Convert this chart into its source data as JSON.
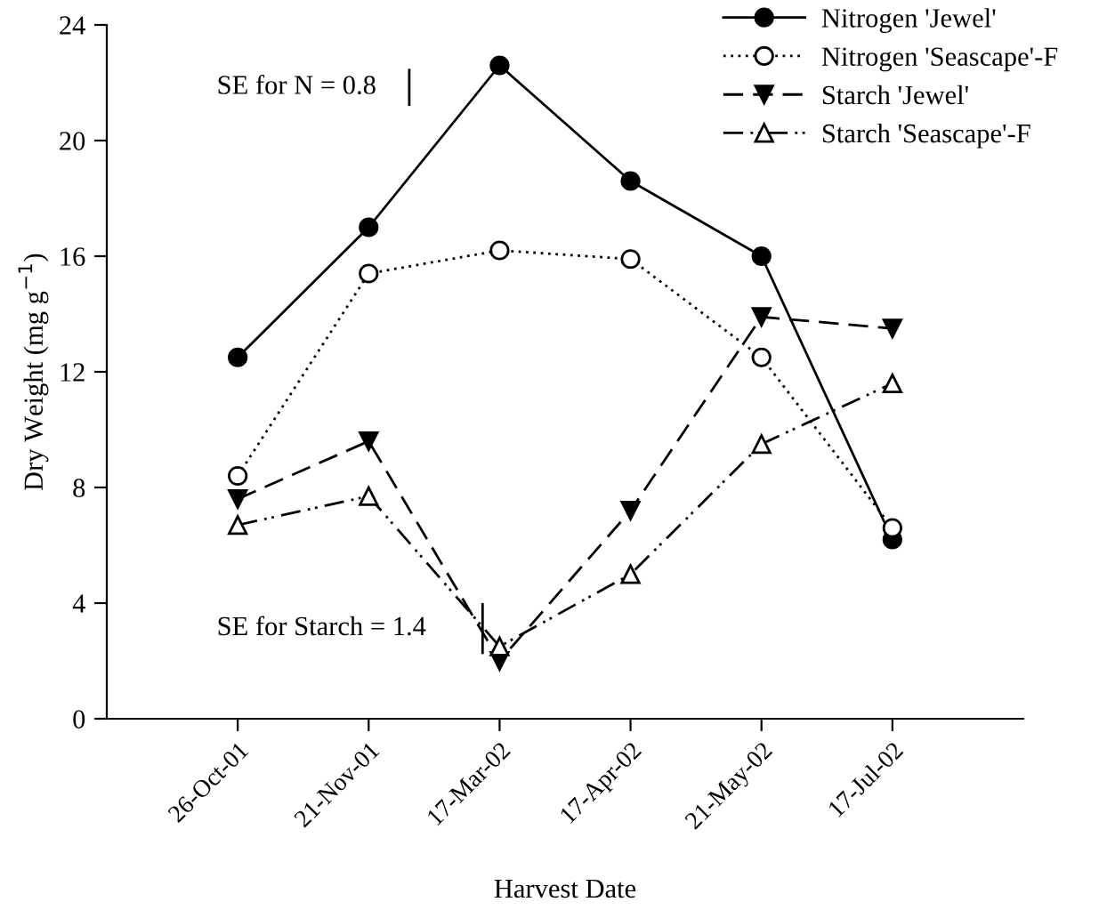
{
  "chart_data": {
    "type": "line",
    "xlabel": "Harvest Date",
    "ylabel": "Dry Weight (mg g$^{−1}$)",
    "categories": [
      "26-Oct-01",
      "21-Nov-01",
      "17-Mar-02",
      "17-Apr-02",
      "21-May-02",
      "17-Jul-02"
    ],
    "ylim": [
      0,
      24
    ],
    "yticks": [
      0,
      4,
      8,
      12,
      16,
      20,
      24
    ],
    "grid": false,
    "legend": "top right",
    "series": [
      {
        "name": "Nitrogen 'Jewel'",
        "color": "#000000",
        "marker": "circle",
        "line_style": "solid",
        "values": [
          12.5,
          17.0,
          22.6,
          18.6,
          16.0,
          6.2
        ]
      },
      {
        "name": "Nitrogen 'Seascape'-F",
        "color": "#000000",
        "marker": "circle",
        "line_style": "dotted",
        "values": [
          8.4,
          15.4,
          16.2,
          15.9,
          12.5,
          6.6
        ]
      },
      {
        "name": "Starch 'Jewel'",
        "color": "#000000",
        "marker": "triangle_down",
        "line_style": "dashed",
        "values": [
          7.6,
          9.6,
          2.0,
          7.2,
          13.9,
          13.5
        ]
      },
      {
        "name": "Starch 'Seascape'-F",
        "color": "#000000",
        "marker": "triangle",
        "line_style": "dashdotdot",
        "values": [
          6.7,
          7.7,
          2.5,
          5.0,
          9.5,
          11.6
        ]
      }
    ],
    "annotations": [
      "SE for N = 0.8",
      "SE for Starch = 1.4"
    ]
  }
}
